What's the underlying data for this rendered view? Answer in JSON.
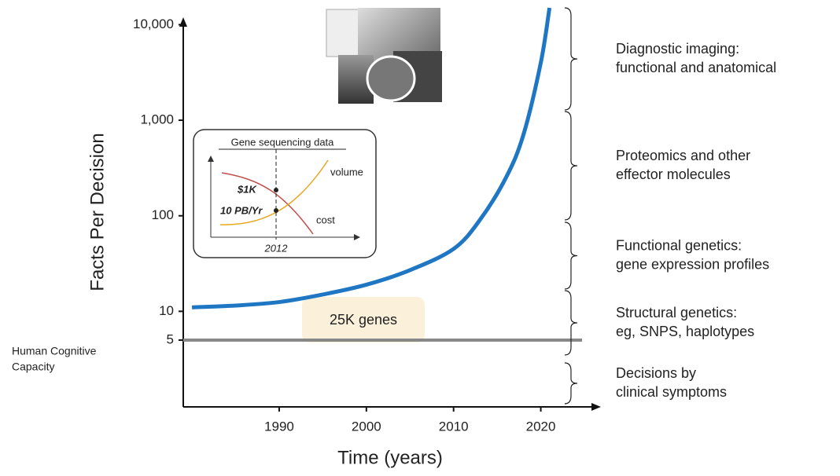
{
  "chart_data": {
    "type": "line",
    "xlabel": "Time (years)",
    "ylabel": "Facts Per Decision",
    "x": [
      1980,
      1985,
      1990,
      1995,
      2000,
      2005,
      2010,
      2013,
      2016,
      2018,
      2020,
      2021
    ],
    "series": [
      {
        "name": "Facts Per Decision",
        "color": "#1f77c4",
        "values": [
          11,
          11.5,
          12.5,
          15,
          19,
          27,
          45,
          90,
          250,
          700,
          4000,
          15000
        ]
      }
    ],
    "xlim": [
      1979,
      2025
    ],
    "xticks": [
      1990,
      2000,
      2010,
      2020
    ],
    "ylim": [
      1,
      15000
    ],
    "yscale": "log",
    "yticks": [
      {
        "value": 10000,
        "label": "10,000"
      },
      {
        "value": 1000,
        "label": "1,000"
      },
      100,
      10,
      5
    ],
    "hline": {
      "value": 5,
      "color": "#888888",
      "label": [
        "Human Cognitive",
        "Capacity"
      ]
    },
    "annotation": "25K genes",
    "inset": {
      "title": "Gene sequencing data",
      "labels": [
        "$1K",
        "10 PB/Yr",
        "volume",
        "cost",
        "2012"
      ]
    },
    "right_labels": [
      [
        "Diagnostic imaging:",
        "functional and anatomical"
      ],
      [
        "Proteomics and other",
        "effector molecules"
      ],
      [
        "Functional genetics:",
        "gene expression profiles"
      ],
      [
        "Structural genetics:",
        "eg, SNPS, haplotypes"
      ],
      [
        "Decisions by",
        "clinical symptoms"
      ]
    ]
  }
}
